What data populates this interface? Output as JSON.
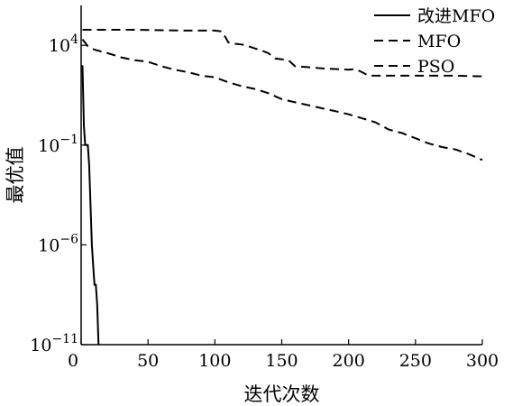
{
  "chart_data": {
    "type": "line",
    "xlabel": "迭代次数",
    "ylabel": "最优值",
    "xlim": [
      0,
      300
    ],
    "ylim_log10": [
      -11,
      6
    ],
    "y_scale": "log",
    "grid": false,
    "legend_position": "top-right",
    "x_ticks": [
      "0",
      "50",
      "100",
      "150",
      "200",
      "250",
      "300"
    ],
    "y_ticks": [
      {
        "value": 10000,
        "base": "10",
        "exp": "4"
      },
      {
        "value": 0.1,
        "base": "10",
        "exp": "−1"
      },
      {
        "value": 1e-06,
        "base": "10",
        "exp": "−6"
      },
      {
        "value": 1e-11,
        "base": "10",
        "exp": "−11"
      }
    ],
    "series": [
      {
        "name": "改进MFO",
        "style": "solid",
        "color": "#000000",
        "x": [
          1,
          2,
          3,
          4,
          5,
          6,
          7,
          8,
          9,
          10,
          11,
          12,
          13
        ],
        "y": [
          1000.0,
          1,
          0.1,
          0.1,
          0.1,
          0.01,
          0.0001,
          1e-06,
          1e-07,
          1e-08,
          1e-08,
          1e-09,
          1e-11
        ]
      },
      {
        "name": "MFO",
        "style": "dashed",
        "color": "#000000",
        "x": [
          1,
          5,
          10,
          20,
          30,
          40,
          50,
          60,
          70,
          80,
          90,
          100,
          110,
          120,
          130,
          140,
          150,
          160,
          170,
          180,
          190,
          200,
          210,
          220,
          230,
          240,
          250,
          260,
          270,
          280,
          290,
          300
        ],
        "y": [
          20000,
          9000,
          6000,
          4000,
          2500,
          1800,
          1500,
          900,
          600,
          450,
          300,
          250,
          140,
          90,
          65,
          40,
          20,
          14,
          10,
          7,
          5,
          3.5,
          2.2,
          1.4,
          0.6,
          0.4,
          0.22,
          0.12,
          0.08,
          0.06,
          0.035,
          0.018
        ]
      },
      {
        "name": "PSO",
        "style": "dashed",
        "color": "#000000",
        "x": [
          1,
          40,
          80,
          100,
          105,
          108,
          110,
          115,
          120,
          125,
          130,
          135,
          140,
          145,
          150,
          155,
          160,
          170,
          180,
          190,
          200,
          205,
          210,
          215,
          220,
          240,
          260,
          280,
          300
        ],
        "y": [
          60000,
          60000,
          55000,
          55000,
          50000,
          25000,
          14000,
          12000,
          11000,
          9000,
          7000,
          5500,
          4000,
          2200,
          2000,
          1800,
          900,
          800,
          700,
          650,
          600,
          650,
          450,
          300,
          300,
          300,
          300,
          300,
          280
        ]
      }
    ]
  }
}
